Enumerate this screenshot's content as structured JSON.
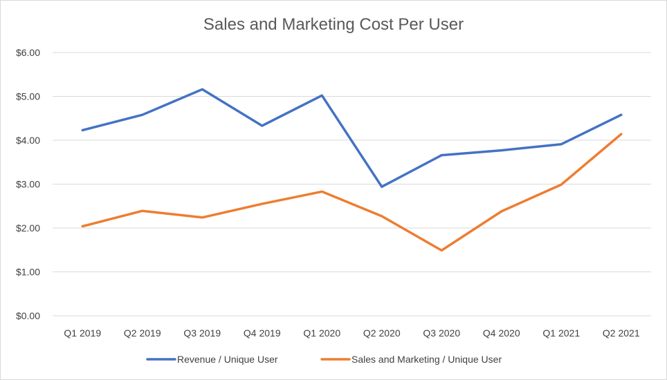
{
  "chart_data": {
    "type": "line",
    "title": "Sales and Marketing Cost Per User",
    "xlabel": "",
    "ylabel": "",
    "categories": [
      "Q1 2019",
      "Q2 2019",
      "Q3 2019",
      "Q4 2019",
      "Q1 2020",
      "Q2 2020",
      "Q3 2020",
      "Q4 2020",
      "Q1 2021",
      "Q2 2021"
    ],
    "ylim": [
      0,
      6
    ],
    "y_ticks": [
      0,
      1,
      2,
      3,
      4,
      5,
      6
    ],
    "y_tick_labels": [
      "$0.00",
      "$1.00",
      "$2.00",
      "$3.00",
      "$4.00",
      "$5.00",
      "$6.00"
    ],
    "grid": true,
    "legend_position": "bottom",
    "series": [
      {
        "name": "Revenue / Unique User",
        "color": "#4472c4",
        "values": [
          4.23,
          4.58,
          5.16,
          4.33,
          5.02,
          2.94,
          3.66,
          3.77,
          3.91,
          4.58
        ]
      },
      {
        "name": "Sales and Marketing / Unique User",
        "color": "#ed7d31",
        "values": [
          2.04,
          2.39,
          2.24,
          2.55,
          2.83,
          2.27,
          1.49,
          2.38,
          2.99,
          4.14
        ]
      }
    ]
  }
}
